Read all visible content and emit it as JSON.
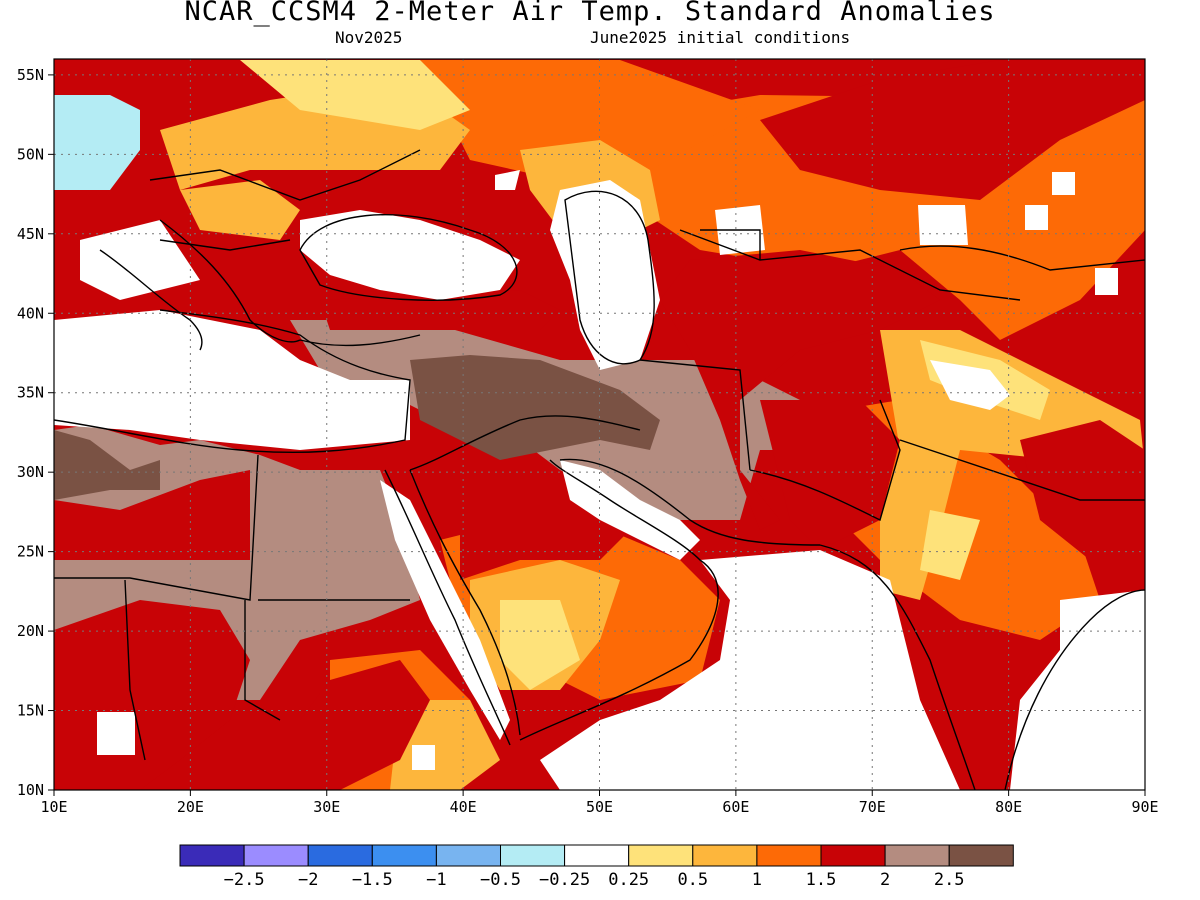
{
  "title": "NCAR_CCSM4 2-Meter Air Temp. Standard Anomalies",
  "subtitle_left": "Nov2025",
  "subtitle_right": "June2025 initial conditions",
  "axes": {
    "lon_labels": [
      "10E",
      "20E",
      "30E",
      "40E",
      "50E",
      "60E",
      "70E",
      "80E",
      "90E"
    ],
    "lat_labels": [
      "55N",
      "50N",
      "45N",
      "40N",
      "35N",
      "30N",
      "25N",
      "20N",
      "15N",
      "10N"
    ],
    "lon_range": [
      10,
      90
    ],
    "lat_range": [
      10,
      56
    ],
    "grid": "dotted"
  },
  "colorbar": {
    "colors": [
      "#3a2bb8",
      "#9b8cff",
      "#2a6be0",
      "#3c8ff0",
      "#78b4f0",
      "#b4ecf4",
      "#ffffff",
      "#fee27a",
      "#fdb63c",
      "#fd6a06",
      "#c80306",
      "#b48c80",
      "#7a5244"
    ],
    "labels": [
      "−2.5",
      "−2",
      "−1.5",
      "−1",
      "−0.5",
      "−0.25",
      "0.25",
      "0.5",
      "1",
      "1.5",
      "2",
      "2.5"
    ]
  },
  "palette": {
    "white": "#ffffff",
    "lt_yellow": "#fee27a",
    "yellow_orange": "#fdb63c",
    "orange": "#fd6a06",
    "red": "#c80306",
    "tan": "#b48c80",
    "brown": "#7a5244",
    "lt_blue": "#b4ecf4"
  }
}
